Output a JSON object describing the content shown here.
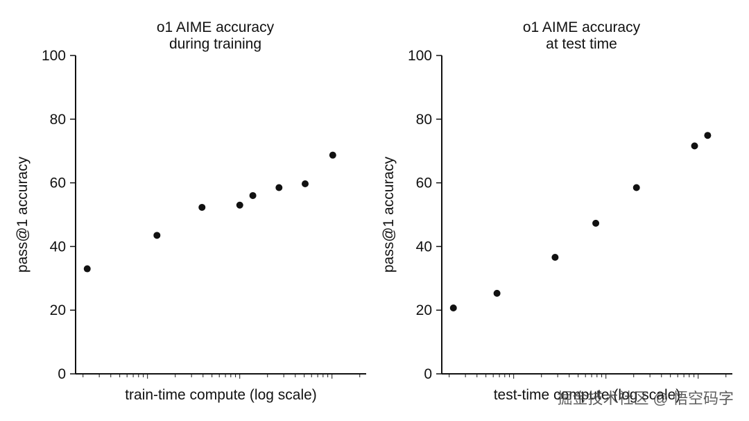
{
  "chart_data": [
    {
      "type": "scatter",
      "title_lines": [
        "o1 AIME accuracy",
        "during training"
      ],
      "xlabel": "train-time compute (log scale)",
      "ylabel": "pass@1 accuracy",
      "xscale": "log",
      "ylim": [
        0,
        100
      ],
      "yticks": [
        0,
        20,
        40,
        60,
        80,
        100
      ],
      "grid": false,
      "point_color": "#111111",
      "x": [
        0.04,
        0.28,
        0.435,
        0.565,
        0.61,
        0.7,
        0.79,
        0.885
      ],
      "y": [
        33,
        43.5,
        52.3,
        53,
        56,
        58.5,
        59.7,
        68.7
      ]
    },
    {
      "type": "scatter",
      "title_lines": [
        "o1 AIME accuracy",
        "at test time"
      ],
      "xlabel": "test-time compute (log scale)",
      "ylabel": "pass@1 accuracy",
      "xscale": "log",
      "ylim": [
        0,
        100
      ],
      "yticks": [
        0,
        20,
        40,
        60,
        80,
        100
      ],
      "grid": false,
      "point_color": "#111111",
      "x": [
        0.04,
        0.19,
        0.39,
        0.53,
        0.67,
        0.87,
        0.915
      ],
      "y": [
        20.7,
        25.3,
        36.6,
        47.3,
        58.5,
        71.6,
        74.9
      ]
    }
  ],
  "watermark": "掘金技术社区 @ 悟空码字"
}
